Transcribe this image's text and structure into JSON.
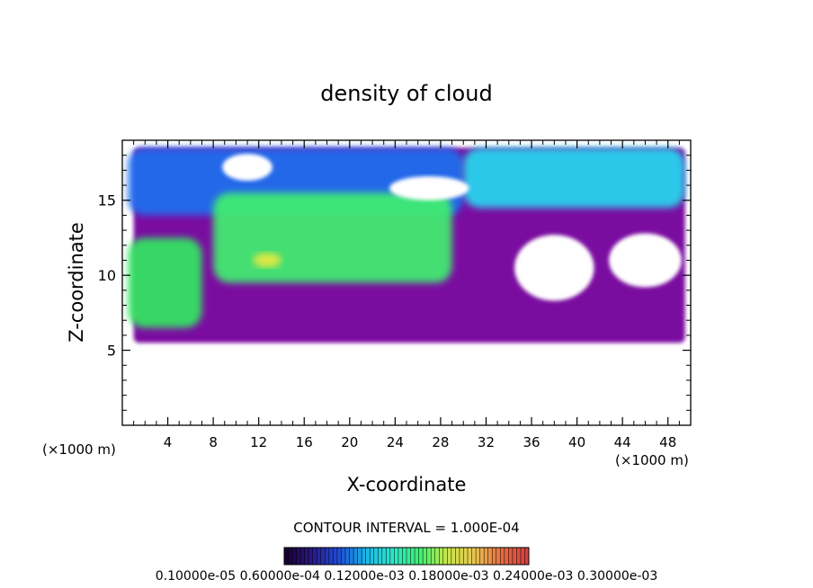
{
  "chart_data": {
    "type": "heatmap",
    "title": "density of cloud",
    "xlabel": "X-coordinate",
    "ylabel": "Z-coordinate",
    "x_unit_left": "(×1000 m)",
    "x_unit_right": "(×1000 m)",
    "xlim": [
      0,
      50
    ],
    "ylim": [
      0,
      19
    ],
    "x_ticks": [
      "4",
      "8",
      "12",
      "16",
      "20",
      "24",
      "28",
      "32",
      "36",
      "40",
      "44",
      "48"
    ],
    "y_ticks": [
      "5",
      "10",
      "15"
    ],
    "contour_interval_text": "CONTOUR INTERVAL = 1.000E-04",
    "colorbar_labels_text": "0.10000e-05 0.60000e-04 0.12000e-03 0.18000e-03 0.24000e-03 0.30000e-03",
    "colorbar_values": [
      1e-06,
      6e-05,
      0.00012,
      0.00018,
      0.00024,
      0.0003
    ],
    "colormap": [
      "#1a0033",
      "#2a1a8a",
      "#1f4fd8",
      "#19b8e8",
      "#2de6c8",
      "#3df070",
      "#c8e84a",
      "#e8c850",
      "#e87040",
      "#d04040"
    ],
    "regions": [
      {
        "name": "purple background cloud",
        "x": [
          1,
          49.5
        ],
        "z": [
          5.5,
          18.5
        ],
        "level": "low",
        "color": "#7a0aa0"
      },
      {
        "name": "upper blue band",
        "x": [
          0.5,
          30
        ],
        "z": [
          14,
          18.5
        ],
        "level": "medium",
        "color": "#1e6ff0"
      },
      {
        "name": "upper right cyan",
        "x": [
          30,
          49.5
        ],
        "z": [
          14.5,
          18.5
        ],
        "level": "medium-high",
        "color": "#28d8f0"
      },
      {
        "name": "left green column",
        "x": [
          0.5,
          7
        ],
        "z": [
          6.5,
          12.5
        ],
        "level": "high",
        "color": "#30e860"
      },
      {
        "name": "central green core",
        "x": [
          8,
          29
        ],
        "z": [
          9.5,
          15.5
        ],
        "level": "high",
        "color": "#40f070"
      },
      {
        "name": "yellow peak",
        "x": [
          11.5,
          14
        ],
        "z": [
          10.5,
          11.5
        ],
        "level": "peak",
        "color": "#e8e840"
      }
    ]
  }
}
